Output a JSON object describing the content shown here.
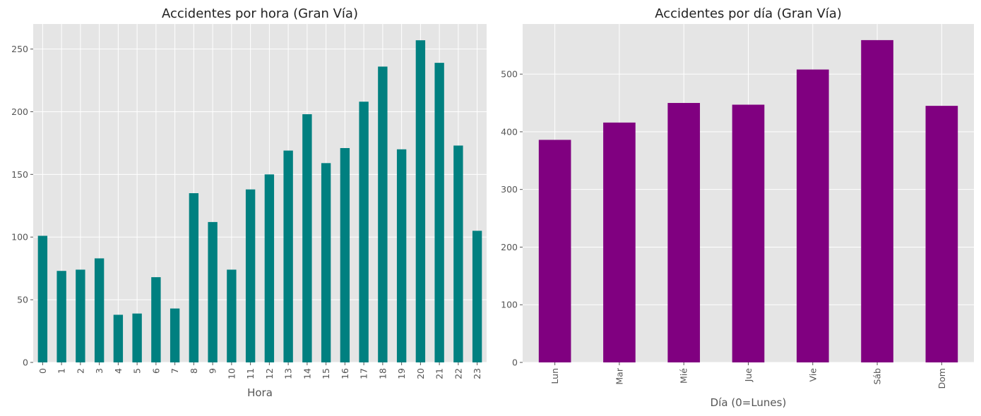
{
  "chart_data": [
    {
      "type": "bar",
      "title": "Accidentes por hora (Gran Vía)",
      "xlabel": "Hora",
      "ylabel": "",
      "categories": [
        "0",
        "1",
        "2",
        "3",
        "4",
        "5",
        "6",
        "7",
        "8",
        "9",
        "10",
        "11",
        "12",
        "13",
        "14",
        "15",
        "16",
        "17",
        "18",
        "19",
        "20",
        "21",
        "22",
        "23"
      ],
      "values": [
        101,
        73,
        74,
        83,
        38,
        39,
        68,
        43,
        135,
        112,
        74,
        138,
        150,
        169,
        198,
        159,
        171,
        208,
        236,
        170,
        257,
        239,
        173,
        105
      ],
      "ylim": [
        0,
        270
      ],
      "yticks": [
        0,
        50,
        100,
        150,
        200,
        250
      ],
      "color": "#008080",
      "grid": true
    },
    {
      "type": "bar",
      "title": "Accidentes por día (Gran Vía)",
      "xlabel": "Día (0=Lunes)",
      "ylabel": "",
      "categories": [
        "Lun",
        "Mar",
        "Mié",
        "Jue",
        "Vie",
        "Sáb",
        "Dom"
      ],
      "values": [
        386,
        416,
        450,
        447,
        508,
        559,
        445
      ],
      "ylim": [
        0,
        587
      ],
      "yticks": [
        0,
        100,
        200,
        300,
        400,
        500
      ],
      "color": "#800080",
      "grid": true
    }
  ]
}
